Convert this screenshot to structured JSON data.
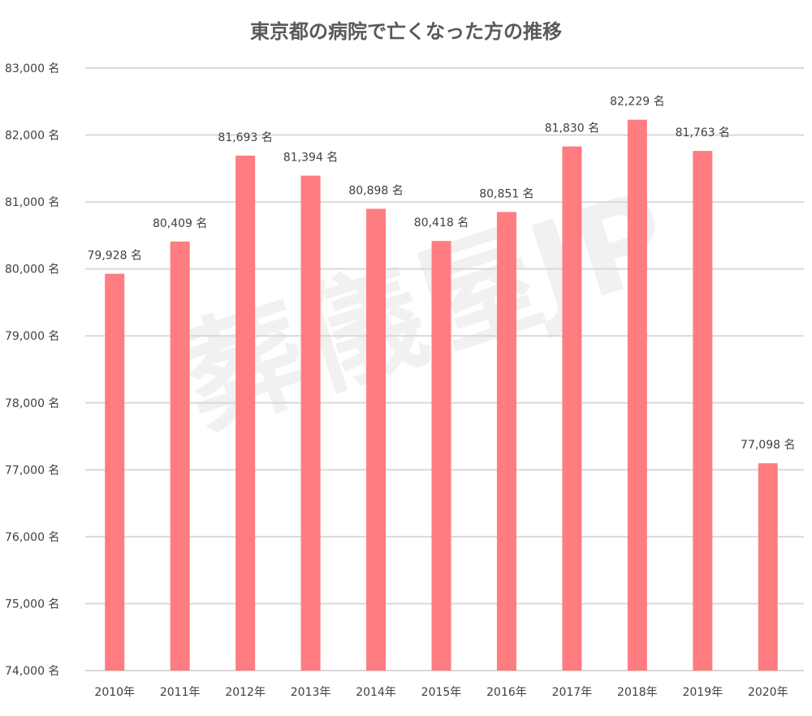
{
  "chart_data": {
    "type": "bar",
    "title": "東京都の病院で亡くなった方の推移",
    "watermark": "葬儀屋JP",
    "categories": [
      "2010年",
      "2011年",
      "2012年",
      "2013年",
      "2014年",
      "2015年",
      "2016年",
      "2017年",
      "2018年",
      "2019年",
      "2020年"
    ],
    "values": [
      79928,
      80409,
      81693,
      81394,
      80898,
      80418,
      80851,
      81830,
      82229,
      81763,
      77098
    ],
    "data_labels": [
      "79,928 名",
      "80,409 名",
      "81,693 名",
      "81,394 名",
      "80,898 名",
      "80,418 名",
      "80,851 名",
      "81,830 名",
      "82,229 名",
      "81,763 名",
      "77,098 名"
    ],
    "ylim": [
      74000,
      83000
    ],
    "yticks": [
      74000,
      75000,
      76000,
      77000,
      78000,
      79000,
      80000,
      81000,
      82000,
      83000
    ],
    "ytick_labels": [
      "74,000 名",
      "75,000 名",
      "76,000 名",
      "77,000 名",
      "78,000 名",
      "79,000 名",
      "80,000 名",
      "81,000 名",
      "82,000 名",
      "83,000 名"
    ],
    "xlabel": "",
    "ylabel": "",
    "grid": true,
    "legend": "none",
    "colors": {
      "bar": "#ff7c80",
      "grid": "#d9d9d9",
      "text": "#404040"
    }
  }
}
